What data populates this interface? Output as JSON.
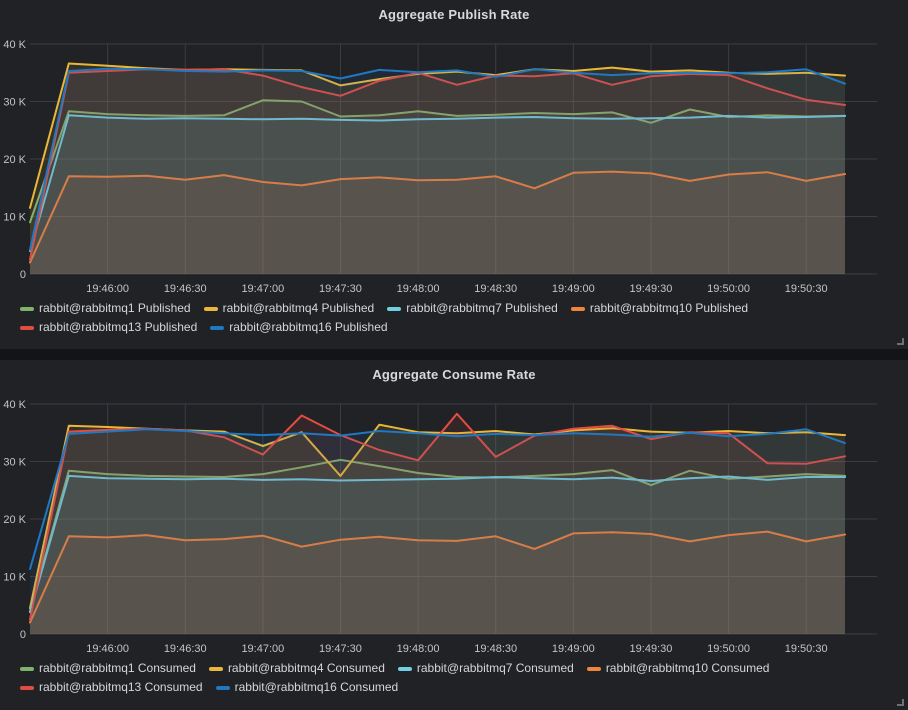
{
  "theme": {
    "page_bg": "#131417",
    "panel_bg": "#202226",
    "grid_line_color": "#3a3d42",
    "axis_text_color": "#c3c4c7",
    "title_color": "#d8d9da",
    "legend_text_color": "#d5d6d8",
    "resize_handle_color": "#6e7072"
  },
  "chart_data": [
    {
      "type": "area",
      "title": "Aggregate Publish Rate",
      "grid": true,
      "legend_position": "bottom",
      "fill_opacity": 0.1,
      "line_width": 2,
      "ylim": [
        0,
        40
      ],
      "y_unit": "thousands (K)",
      "y_ticks": [
        0,
        10,
        20,
        30,
        40
      ],
      "y_tick_labels": [
        "0",
        "10 K",
        "20 K",
        "30 K",
        "40 K"
      ],
      "x_tick_labels": [
        "19:46:00",
        "19:46:30",
        "19:47:00",
        "19:47:30",
        "19:48:00",
        "19:48:30",
        "19:49:00",
        "19:49:30",
        "19:50:00",
        "19:50:30"
      ],
      "x_first_tick_index": 2,
      "x_tick_every": 2,
      "x_point_interval_seconds": 15,
      "series": [
        {
          "name": "rabbit@rabbitmq1 Published",
          "color": "#7EB26D",
          "values": [
            9.0,
            28.3,
            27.8,
            27.6,
            27.5,
            27.6,
            30.2,
            30.0,
            27.4,
            27.6,
            28.3,
            27.5,
            27.7,
            28.0,
            27.8,
            28.1,
            26.3,
            28.6,
            27.3,
            27.6,
            27.4,
            27.5
          ]
        },
        {
          "name": "rabbit@rabbitmq4 Published",
          "color": "#EAB839",
          "values": [
            11.5,
            36.6,
            36.2,
            35.8,
            35.5,
            35.6,
            35.5,
            35.4,
            32.8,
            33.9,
            34.8,
            35.2,
            34.6,
            35.6,
            35.3,
            35.9,
            35.2,
            35.4,
            35.0,
            34.8,
            35.0,
            34.5
          ]
        },
        {
          "name": "rabbit@rabbitmq7 Published",
          "color": "#6ED0E0",
          "values": [
            4.0,
            27.6,
            27.2,
            27.0,
            27.1,
            27.0,
            26.9,
            27.0,
            26.8,
            26.7,
            26.9,
            27.0,
            27.2,
            27.3,
            27.1,
            27.0,
            27.1,
            27.2,
            27.5,
            27.2,
            27.3,
            27.5
          ]
        },
        {
          "name": "rabbit@rabbitmq10 Published",
          "color": "#EF843C",
          "values": [
            2.0,
            17.0,
            16.9,
            17.1,
            16.4,
            17.2,
            16.0,
            15.4,
            16.5,
            16.8,
            16.3,
            16.4,
            17.0,
            14.9,
            17.6,
            17.8,
            17.5,
            16.2,
            17.3,
            17.7,
            16.2,
            17.4
          ]
        },
        {
          "name": "rabbit@rabbitmq13 Published",
          "color": "#E24D42",
          "values": [
            2.5,
            35.0,
            35.3,
            35.6,
            35.5,
            35.6,
            34.5,
            32.5,
            31.0,
            33.6,
            35.0,
            32.9,
            34.5,
            34.4,
            34.9,
            32.9,
            34.4,
            34.8,
            34.6,
            32.3,
            30.3,
            29.4
          ]
        },
        {
          "name": "rabbit@rabbitmq16 Published",
          "color": "#1F78C1",
          "values": [
            4.2,
            35.3,
            35.7,
            35.6,
            35.3,
            35.2,
            35.4,
            35.3,
            34.0,
            35.5,
            35.1,
            35.4,
            34.3,
            35.6,
            35.0,
            34.6,
            34.9,
            35.0,
            34.9,
            35.1,
            35.6,
            33.1
          ]
        }
      ]
    },
    {
      "type": "area",
      "title": "Aggregate Consume Rate",
      "grid": true,
      "legend_position": "bottom",
      "fill_opacity": 0.1,
      "line_width": 2,
      "ylim": [
        0,
        40
      ],
      "y_unit": "thousands (K)",
      "y_ticks": [
        0,
        10,
        20,
        30,
        40
      ],
      "y_tick_labels": [
        "0",
        "10 K",
        "20 K",
        "30 K",
        "40 K"
      ],
      "x_tick_labels": [
        "19:46:00",
        "19:46:30",
        "19:47:00",
        "19:47:30",
        "19:48:00",
        "19:48:30",
        "19:49:00",
        "19:49:30",
        "19:50:00",
        "19:50:30"
      ],
      "x_first_tick_index": 2,
      "x_tick_every": 2,
      "x_point_interval_seconds": 15,
      "series": [
        {
          "name": "rabbit@rabbitmq1 Consumed",
          "color": "#7EB26D",
          "values": [
            3.9,
            28.4,
            27.8,
            27.5,
            27.4,
            27.3,
            27.8,
            29.0,
            30.3,
            29.2,
            28.0,
            27.3,
            27.2,
            27.5,
            27.8,
            28.5,
            25.9,
            28.4,
            27.0,
            27.4,
            27.8,
            27.5
          ]
        },
        {
          "name": "rabbit@rabbitmq4 Consumed",
          "color": "#EAB839",
          "values": [
            4.5,
            36.2,
            36.0,
            35.7,
            35.4,
            35.2,
            32.7,
            35.1,
            27.5,
            36.4,
            35.1,
            34.9,
            35.3,
            34.7,
            35.4,
            35.8,
            35.2,
            35.0,
            35.3,
            34.9,
            35.1,
            34.6
          ]
        },
        {
          "name": "rabbit@rabbitmq7 Consumed",
          "color": "#6ED0E0",
          "values": [
            3.8,
            27.5,
            27.1,
            27.0,
            26.9,
            27.0,
            26.8,
            26.9,
            26.7,
            26.8,
            26.9,
            27.0,
            27.3,
            27.1,
            26.9,
            27.2,
            26.6,
            27.1,
            27.4,
            26.8,
            27.3,
            27.3
          ]
        },
        {
          "name": "rabbit@rabbitmq10 Consumed",
          "color": "#EF843C",
          "values": [
            2.0,
            17.0,
            16.8,
            17.2,
            16.3,
            16.5,
            17.1,
            15.2,
            16.4,
            16.9,
            16.3,
            16.2,
            17.0,
            14.8,
            17.5,
            17.7,
            17.4,
            16.1,
            17.2,
            17.8,
            16.1,
            17.3
          ]
        },
        {
          "name": "rabbit@rabbitmq13 Consumed",
          "color": "#E24D42",
          "values": [
            2.5,
            35.2,
            35.5,
            35.7,
            35.4,
            34.2,
            31.2,
            38.0,
            34.6,
            32.0,
            30.2,
            38.3,
            30.8,
            34.5,
            35.7,
            36.2,
            33.9,
            35.1,
            34.9,
            29.7,
            29.6,
            30.9
          ]
        },
        {
          "name": "rabbit@rabbitmq16 Consumed",
          "color": "#1F78C1",
          "values": [
            11.3,
            34.8,
            35.2,
            35.6,
            35.3,
            34.9,
            34.6,
            34.9,
            34.5,
            35.3,
            34.9,
            34.4,
            34.8,
            34.6,
            34.9,
            34.7,
            34.3,
            35.0,
            34.4,
            34.8,
            35.6,
            33.2
          ]
        }
      ]
    }
  ]
}
